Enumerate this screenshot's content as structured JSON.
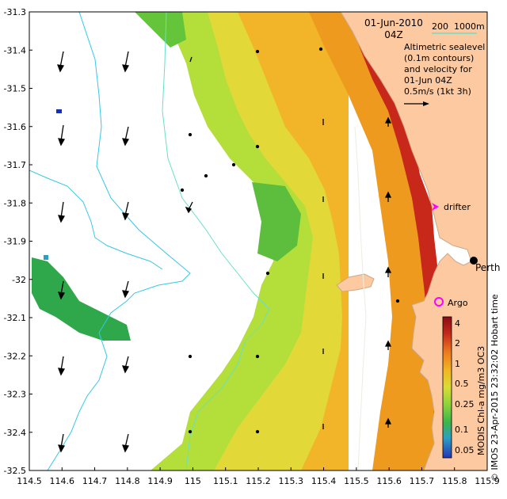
{
  "map": {
    "date_line": "01-Jun-2010",
    "time_line": "04Z",
    "depth_a": "200",
    "depth_b": "1000m",
    "legend_lines": [
      "Altimetric sealevel",
      "(0.1m contours)",
      "and velocity for",
      "01-Jun 04Z",
      "0.5m/s (1kt 3h)"
    ],
    "x_ticks": [
      "114.5",
      "114.6",
      "114.7",
      "114.8",
      "114.9",
      "115",
      "115.1",
      "115.2",
      "115.3",
      "115.4",
      "115.5",
      "115.6",
      "115.7",
      "115.8",
      "115.9"
    ],
    "y_ticks": [
      "-31.3",
      "-31.4",
      "-31.5",
      "-31.6",
      "-31.7",
      "-31.8",
      "-31.9",
      "-32",
      "-32.1",
      "-32.2",
      "-32.3",
      "-32.4",
      "-32.5"
    ],
    "colorbar_ticks": [
      "4",
      "2",
      "1",
      "0.5",
      "0.25",
      "0.1",
      "0.05"
    ],
    "colorbar_label": "MODIS Chl-a mg/m3 OC3",
    "credit": "© IMOS 23-Apr-2015 23:32:02 Hobart time",
    "drifter_label": "drifter",
    "argo_label": "Argo",
    "city_label": "Perth",
    "colors": {
      "land": "#fcc9a0",
      "coast": "#d4b090",
      "ocean_white": "#ffffff",
      "high_chl": "#a4121a",
      "orange": "#f2a41c",
      "yellow": "#e6d638",
      "yellow_green": "#a8dc36",
      "green": "#4cbc3c",
      "dark_green": "#189a48",
      "contour_200": "#36c8e6",
      "contour_1000": "#68e0c8",
      "drifter": "#ff00ff",
      "argo": "#ff00ff"
    }
  }
}
